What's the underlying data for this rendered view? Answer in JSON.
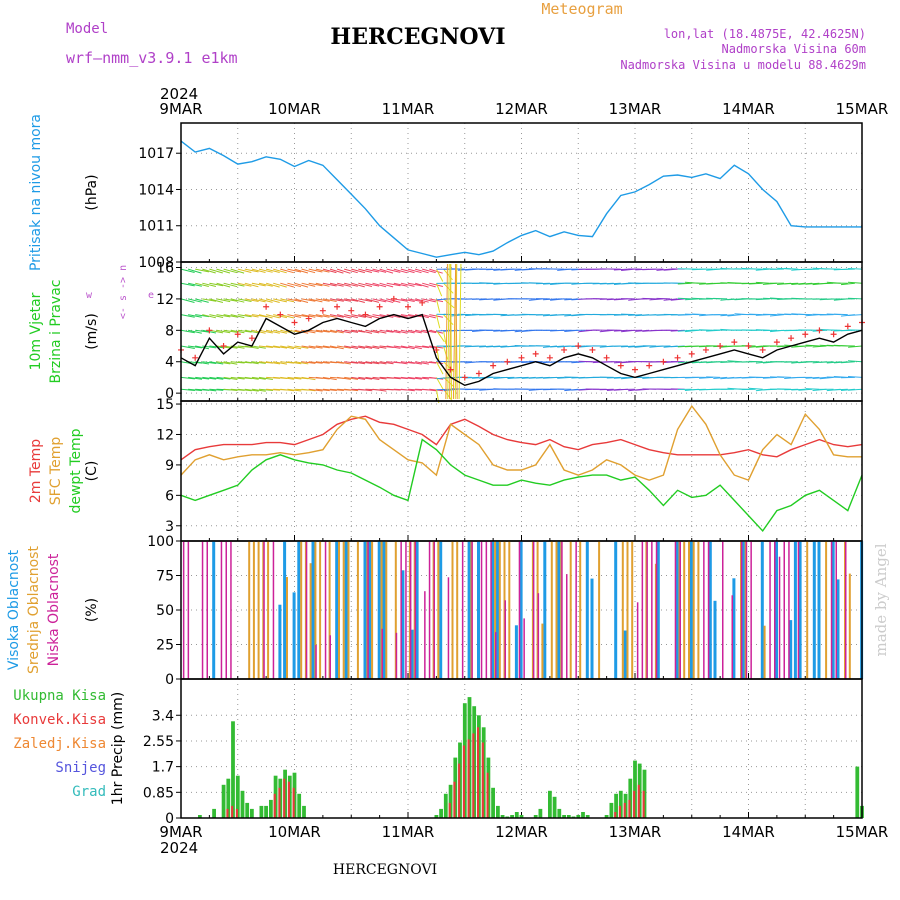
{
  "header": {
    "model_label": "Model",
    "model_name": "wrf–nmm_v3.9.1  e1km",
    "title": "HERCEGNOVI",
    "subtitle": "Meteogram",
    "lonlat": "lon,lat (18.4875E, 42.4625N)",
    "altitude": "Nadmorska Visina 60m",
    "model_altitude": "Nadmorska Visina u modelu 88.4629m",
    "year_top": "2024",
    "year_bottom": "2024",
    "footer": "HERCEGNOVI",
    "watermark": "made by Angel"
  },
  "colors": {
    "pressure": "#1e9be6",
    "t2m": "#e83a3a",
    "sfc": "#e0a030",
    "dewpt": "#22cc22",
    "high_cloud": "#1e9be6",
    "mid_cloud": "#e0a030",
    "low_cloud": "#cc2299",
    "precip_total": "#33bb33",
    "precip_conv": "#e83a3a",
    "frozen": "#ee8833",
    "snow": "#5555dd",
    "hail": "#33bbbb",
    "wind_speed": "#000000",
    "gust": "#ee3333",
    "dir_legend": "#bb55cc",
    "header_purple": "#b040c8",
    "header_orange": "#e8a040"
  },
  "chart_data": {
    "type": "meteogram",
    "x_dates": [
      "9MAR",
      "10MAR",
      "11MAR",
      "12MAR",
      "13MAR",
      "14MAR",
      "15MAR"
    ],
    "x_unit": "hours since 2024-03-09 00:00",
    "panels": [
      {
        "name": "pressure",
        "ylabel_lines": [
          "Pritisak na nivou mora"
        ],
        "unit": "(hPa)",
        "ylim": [
          1008,
          1019.5
        ],
        "yticks": [
          1008,
          1011,
          1014,
          1017
        ],
        "series": [
          {
            "name": "Pritisak na nivou mora",
            "color_key": "pressure",
            "x": [
              0,
              3,
              6,
              9,
              12,
              15,
              18,
              21,
              24,
              27,
              30,
              33,
              36,
              39,
              42,
              45,
              48,
              51,
              54,
              57,
              60,
              63,
              66,
              69,
              72,
              75,
              78,
              81,
              84,
              87,
              90,
              93,
              96,
              99,
              102,
              105,
              108,
              111,
              114,
              117,
              120,
              123,
              126,
              129,
              132,
              135,
              138,
              141,
              144
            ],
            "y": [
              1018.0,
              1017.1,
              1017.4,
              1016.8,
              1016.1,
              1016.3,
              1016.7,
              1016.5,
              1015.9,
              1016.4,
              1016.0,
              1014.8,
              1013.6,
              1012.4,
              1011.0,
              1010.0,
              1009.0,
              1008.7,
              1008.4,
              1008.6,
              1008.8,
              1008.6,
              1008.9,
              1009.6,
              1010.2,
              1010.6,
              1010.1,
              1010.5,
              1010.2,
              1010.1,
              1012.0,
              1013.5,
              1013.8,
              1014.4,
              1015.1,
              1015.2,
              1015.0,
              1015.3,
              1014.9,
              1016.0,
              1015.3,
              1014.0,
              1013.0,
              1011.0,
              1010.9,
              1010.9,
              1010.9,
              1010.9,
              1010.9
            ]
          }
        ]
      },
      {
        "name": "wind",
        "ylabel_lines": [
          "10m Vjetar",
          "Brzina i Pravac"
        ],
        "unit": "(m/s)",
        "ylim": [
          -1,
          16.7
        ],
        "yticks": [
          0,
          4,
          8,
          12,
          16
        ],
        "direction_legend": [
          "w",
          "<-",
          "s",
          "->",
          "n",
          "e"
        ],
        "series": [
          {
            "name": "Brzina",
            "color_key": "wind_speed",
            "x": [
              0,
              3,
              6,
              9,
              12,
              15,
              18,
              21,
              24,
              27,
              30,
              33,
              36,
              39,
              42,
              45,
              48,
              51,
              54,
              57,
              60,
              63,
              66,
              69,
              72,
              75,
              78,
              81,
              84,
              87,
              90,
              93,
              96,
              99,
              102,
              105,
              108,
              111,
              114,
              117,
              120,
              123,
              126,
              129,
              132,
              135,
              138,
              141,
              144
            ],
            "y": [
              4.5,
              3.5,
              7.0,
              5.0,
              6.5,
              6.0,
              9.5,
              8.5,
              7.5,
              8.0,
              9.0,
              9.5,
              9.0,
              8.5,
              9.5,
              10.0,
              9.5,
              10.0,
              4.5,
              2.0,
              1.0,
              1.5,
              2.5,
              3.0,
              3.5,
              4.0,
              3.5,
              4.5,
              5.0,
              4.5,
              3.5,
              2.5,
              2.0,
              2.5,
              3.0,
              3.5,
              4.0,
              4.5,
              5.0,
              5.5,
              5.0,
              4.5,
              5.5,
              6.0,
              6.5,
              7.0,
              6.5,
              7.5,
              8.0
            ]
          },
          {
            "name": "Udar",
            "color_key": "gust",
            "x": [
              0,
              3,
              6,
              9,
              12,
              15,
              18,
              21,
              24,
              27,
              30,
              33,
              36,
              39,
              42,
              45,
              48,
              51,
              54,
              57,
              60,
              63,
              66,
              69,
              72,
              75,
              78,
              81,
              84,
              87,
              90,
              93,
              96,
              99,
              102,
              105,
              108,
              111,
              114,
              117,
              120,
              123,
              126,
              129,
              132,
              135,
              138,
              141,
              144
            ],
            "y": [
              5.5,
              4.5,
              8.0,
              6.0,
              7.5,
              7.0,
              11.0,
              10.0,
              9.0,
              9.5,
              10.5,
              11.0,
              10.5,
              10.0,
              11.0,
              12.0,
              11.0,
              11.5,
              5.5,
              3.0,
              2.0,
              2.5,
              3.5,
              4.0,
              4.5,
              5.0,
              4.5,
              5.5,
              6.0,
              5.5,
              4.5,
              3.5,
              3.0,
              3.5,
              4.0,
              4.5,
              5.0,
              5.5,
              6.0,
              6.5,
              6.0,
              5.5,
              6.5,
              7.0,
              7.5,
              8.0,
              7.5,
              8.5,
              9.0
            ]
          }
        ]
      },
      {
        "name": "temperature",
        "ylabel_lines": [
          "2m Temp",
          "SFC Temp",
          "dewpt Temp"
        ],
        "unit": "(C)",
        "ylim": [
          1.5,
          15.3
        ],
        "yticks": [
          3,
          6,
          9,
          12,
          15
        ],
        "series": [
          {
            "name": "2m Temp",
            "color_key": "t2m",
            "x": [
              0,
              3,
              6,
              9,
              12,
              15,
              18,
              21,
              24,
              27,
              30,
              33,
              36,
              39,
              42,
              45,
              48,
              51,
              54,
              57,
              60,
              63,
              66,
              69,
              72,
              75,
              78,
              81,
              84,
              87,
              90,
              93,
              96,
              99,
              102,
              105,
              108,
              111,
              114,
              117,
              120,
              123,
              126,
              129,
              132,
              135,
              138,
              141,
              144
            ],
            "y": [
              9.5,
              10.5,
              10.8,
              11.0,
              11.0,
              11.0,
              11.2,
              11.2,
              11.0,
              11.5,
              12.0,
              13.0,
              13.5,
              13.8,
              13.2,
              13.0,
              12.5,
              12.0,
              11.0,
              13.0,
              13.5,
              12.8,
              12.0,
              11.5,
              11.2,
              11.0,
              11.5,
              10.8,
              10.5,
              11.0,
              11.2,
              11.5,
              11.0,
              10.5,
              10.2,
              10.0,
              10.0,
              10.0,
              10.0,
              10.2,
              10.5,
              10.0,
              9.8,
              10.5,
              11.0,
              11.5,
              11.0,
              10.8,
              11.0
            ]
          },
          {
            "name": "SFC Temp",
            "color_key": "sfc",
            "x": [
              0,
              3,
              6,
              9,
              12,
              15,
              18,
              21,
              24,
              27,
              30,
              33,
              36,
              39,
              42,
              45,
              48,
              51,
              54,
              57,
              60,
              63,
              66,
              69,
              72,
              75,
              78,
              81,
              84,
              87,
              90,
              93,
              96,
              99,
              102,
              105,
              108,
              111,
              114,
              117,
              120,
              123,
              126,
              129,
              132,
              135,
              138,
              141,
              144
            ],
            "y": [
              8.0,
              9.5,
              10.0,
              9.5,
              9.8,
              10.0,
              10.0,
              10.2,
              10.0,
              10.2,
              10.5,
              12.5,
              13.8,
              13.5,
              11.5,
              10.5,
              9.5,
              9.2,
              8.0,
              13.0,
              12.0,
              11.0,
              9.0,
              8.5,
              8.5,
              9.0,
              11.0,
              8.5,
              8.0,
              8.5,
              9.5,
              9.0,
              8.0,
              7.5,
              8.0,
              12.5,
              14.8,
              13.0,
              10.0,
              8.0,
              7.5,
              10.5,
              12.0,
              11.0,
              14.0,
              12.5,
              10.0,
              9.8,
              9.8
            ]
          },
          {
            "name": "dewpt Temp",
            "color_key": "dewpt",
            "x": [
              0,
              3,
              6,
              9,
              12,
              15,
              18,
              21,
              24,
              27,
              30,
              33,
              36,
              39,
              42,
              45,
              48,
              51,
              54,
              57,
              60,
              63,
              66,
              69,
              72,
              75,
              78,
              81,
              84,
              87,
              90,
              93,
              96,
              99,
              102,
              105,
              108,
              111,
              114,
              117,
              120,
              123,
              126,
              129,
              132,
              135,
              138,
              141,
              144
            ],
            "y": [
              6.0,
              5.5,
              6.0,
              6.5,
              7.0,
              8.5,
              9.5,
              10.0,
              9.5,
              9.2,
              9.0,
              8.5,
              8.2,
              7.5,
              6.8,
              6.0,
              5.5,
              11.5,
              10.5,
              9.0,
              8.0,
              7.5,
              7.0,
              7.0,
              7.5,
              7.2,
              7.0,
              7.5,
              7.8,
              8.0,
              8.0,
              7.5,
              7.8,
              6.5,
              5.0,
              6.5,
              5.8,
              6.0,
              7.0,
              5.5,
              4.0,
              2.5,
              4.5,
              5.0,
              6.0,
              6.5,
              5.5,
              4.5,
              8.0
            ]
          }
        ]
      },
      {
        "name": "cloud",
        "ylabel_lines": [
          "Visoka Oblacnost",
          "Srednja Oblacnost",
          "Niska Oblacnost"
        ],
        "unit": "(%)",
        "ylim": [
          0,
          100
        ],
        "yticks": [
          0,
          25,
          50,
          75,
          100
        ],
        "note": "hourly cloud fraction bars, high/mid/low"
      },
      {
        "name": "precip",
        "ylabel_lines": [
          "1hr Precip (mm)"
        ],
        "unit": "",
        "ylim": [
          0,
          4.6
        ],
        "yticks": [
          0,
          0.85,
          1.7,
          2.55,
          3.4
        ],
        "ytick_labels": [
          "0",
          "0.85",
          "1.7",
          "2.55",
          "3.4"
        ],
        "legend": [
          "Ukupna Kisa",
          "Konvek.Kisa",
          "Zaledj.Kisa",
          "Snijeg",
          "Grad"
        ],
        "series": [
          {
            "name": "Ukupna Kisa",
            "color_key": "precip_total",
            "x": [
              4,
              7,
              9,
              10,
              11,
              12,
              13,
              14,
              15,
              17,
              18,
              19,
              20,
              21,
              22,
              23,
              24,
              25,
              26,
              54,
              55,
              56,
              57,
              58,
              59,
              60,
              61,
              62,
              63,
              64,
              65,
              66,
              67,
              68,
              69,
              70,
              71,
              72,
              75,
              76,
              78,
              79,
              80,
              81,
              82,
              83,
              84,
              85,
              86,
              90,
              91,
              92,
              93,
              94,
              95,
              96,
              97,
              98,
              143,
              144
            ],
            "y": [
              0.1,
              0.3,
              1.1,
              1.3,
              3.2,
              1.4,
              0.9,
              0.5,
              0.3,
              0.4,
              0.4,
              0.6,
              1.4,
              1.3,
              1.6,
              1.4,
              1.5,
              0.8,
              0.4,
              0.1,
              0.3,
              0.8,
              1.1,
              2.0,
              2.5,
              3.8,
              4.0,
              3.7,
              3.4,
              3.0,
              2.0,
              1.0,
              0.4,
              0.1,
              0.05,
              0.1,
              0.2,
              0.1,
              0.1,
              0.3,
              0.9,
              0.7,
              0.3,
              0.1,
              0.1,
              0.05,
              0.1,
              0.2,
              0.1,
              0.1,
              0.5,
              0.8,
              0.9,
              0.8,
              1.3,
              1.9,
              1.8,
              1.6,
              1.7,
              0.4
            ]
          },
          {
            "name": "Konvek.Kisa",
            "color_key": "precip_conv",
            "x": [
              10,
              11,
              12,
              20,
              21,
              22,
              23,
              24,
              57,
              58,
              59,
              60,
              61,
              62,
              63,
              64,
              65,
              92,
              93,
              94,
              95,
              96,
              97,
              98
            ],
            "y": [
              0.3,
              0.4,
              0.3,
              0.8,
              1.0,
              1.3,
              1.2,
              1.0,
              0.5,
              1.2,
              1.8,
              2.4,
              2.6,
              2.8,
              3.0,
              2.5,
              1.5,
              0.2,
              0.4,
              0.5,
              0.6,
              0.9,
              1.1,
              0.9
            ]
          }
        ]
      }
    ]
  }
}
